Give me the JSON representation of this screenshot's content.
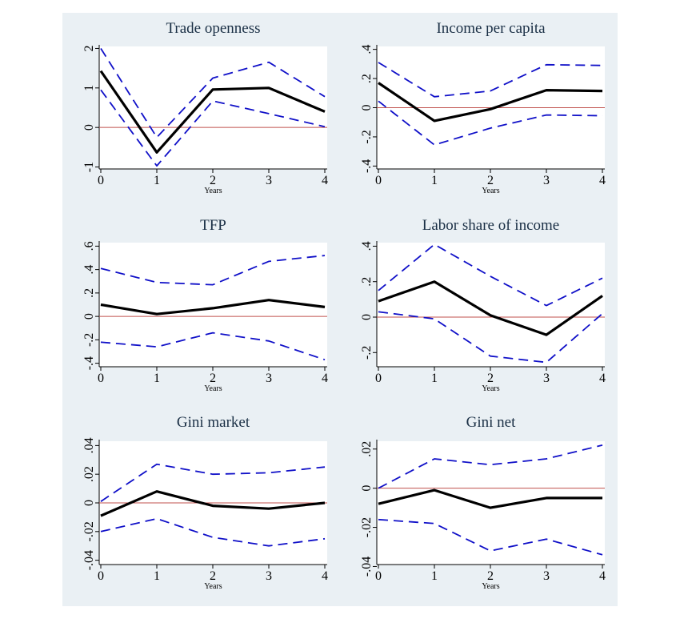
{
  "chart_data": [
    {
      "type": "line",
      "title": "Trade openness",
      "xlabel": "Years",
      "ylabel": "",
      "x": [
        0,
        1,
        2,
        3,
        4
      ],
      "xticks": [
        "0",
        "1",
        "2",
        "3",
        "4"
      ],
      "ylim": [
        -1.05,
        2.05
      ],
      "yticks": [
        {
          "v": -1,
          "t": "-1"
        },
        {
          "v": 0,
          "t": "0"
        },
        {
          "v": 1,
          "t": "1"
        },
        {
          "v": 2,
          "t": "2"
        }
      ],
      "series": [
        {
          "role": "estimate",
          "values": [
            1.43,
            -0.63,
            0.96,
            1.0,
            0.4
          ]
        },
        {
          "role": "upper",
          "values": [
            2.0,
            -0.25,
            1.25,
            1.65,
            0.78
          ]
        },
        {
          "role": "lower",
          "values": [
            0.95,
            -0.97,
            0.67,
            0.35,
            0.02
          ]
        }
      ],
      "zero_line": 0
    },
    {
      "type": "line",
      "title": "Income per capita",
      "xlabel": "Years",
      "ylabel": "",
      "x": [
        0,
        1,
        2,
        3,
        4
      ],
      "xticks": [
        "0",
        "1",
        "2",
        "3",
        "4"
      ],
      "ylim": [
        -0.42,
        0.42
      ],
      "yticks": [
        {
          "v": -0.4,
          "t": "-.4"
        },
        {
          "v": -0.2,
          "t": "-.2"
        },
        {
          "v": 0,
          "t": "0"
        },
        {
          "v": 0.2,
          "t": ".2"
        },
        {
          "v": 0.4,
          "t": ".4"
        }
      ],
      "series": [
        {
          "role": "estimate",
          "values": [
            0.17,
            -0.09,
            -0.01,
            0.12,
            0.115
          ]
        },
        {
          "role": "upper",
          "values": [
            0.31,
            0.075,
            0.115,
            0.295,
            0.29
          ]
        },
        {
          "role": "lower",
          "values": [
            0.045,
            -0.255,
            -0.14,
            -0.05,
            -0.055
          ]
        }
      ],
      "zero_line": 0
    },
    {
      "type": "line",
      "title": "TFP",
      "xlabel": "Years",
      "ylabel": "",
      "x": [
        0,
        1,
        2,
        3,
        4
      ],
      "xticks": [
        "0",
        "1",
        "2",
        "3",
        "4"
      ],
      "ylim": [
        -0.43,
        0.63
      ],
      "yticks": [
        {
          "v": -0.4,
          "t": "-.4"
        },
        {
          "v": -0.2,
          "t": "-.2"
        },
        {
          "v": 0,
          "t": "0"
        },
        {
          "v": 0.2,
          "t": ".2"
        },
        {
          "v": 0.4,
          "t": ".4"
        },
        {
          "v": 0.6,
          "t": ".6"
        }
      ],
      "series": [
        {
          "role": "estimate",
          "values": [
            0.1,
            0.02,
            0.07,
            0.14,
            0.08
          ]
        },
        {
          "role": "upper",
          "values": [
            0.41,
            0.29,
            0.27,
            0.47,
            0.52
          ]
        },
        {
          "role": "lower",
          "values": [
            -0.22,
            -0.26,
            -0.14,
            -0.21,
            -0.37
          ]
        }
      ],
      "zero_line": 0
    },
    {
      "type": "line",
      "title": "Labor share of income",
      "xlabel": "Years",
      "ylabel": "",
      "x": [
        0,
        1,
        2,
        3,
        4
      ],
      "xticks": [
        "0",
        "1",
        "2",
        "3",
        "4"
      ],
      "ylim": [
        -0.28,
        0.42
      ],
      "yticks": [
        {
          "v": -0.2,
          "t": "-.2"
        },
        {
          "v": 0,
          "t": "0"
        },
        {
          "v": 0.2,
          "t": ".2"
        },
        {
          "v": 0.4,
          "t": ".4"
        }
      ],
      "series": [
        {
          "role": "estimate",
          "values": [
            0.09,
            0.2,
            0.01,
            -0.1,
            0.12
          ]
        },
        {
          "role": "upper",
          "values": [
            0.15,
            0.41,
            0.23,
            0.065,
            0.22
          ]
        },
        {
          "role": "lower",
          "values": [
            0.03,
            -0.01,
            -0.22,
            -0.255,
            0.02
          ]
        }
      ],
      "zero_line": 0
    },
    {
      "type": "line",
      "title": "Gini market",
      "xlabel": "Years",
      "ylabel": "",
      "x": [
        0,
        1,
        2,
        3,
        4
      ],
      "xticks": [
        "0",
        "1",
        "2",
        "3",
        "4"
      ],
      "ylim": [
        -0.043,
        0.043
      ],
      "yticks": [
        {
          "v": -0.04,
          "t": "-.04"
        },
        {
          "v": -0.02,
          "t": "-.02"
        },
        {
          "v": 0,
          "t": "0"
        },
        {
          "v": 0.02,
          "t": ".02"
        },
        {
          "v": 0.04,
          "t": ".04"
        }
      ],
      "series": [
        {
          "role": "estimate",
          "values": [
            -0.009,
            0.008,
            -0.002,
            -0.004,
            0.0
          ]
        },
        {
          "role": "upper",
          "values": [
            0.001,
            0.027,
            0.02,
            0.021,
            0.025
          ]
        },
        {
          "role": "lower",
          "values": [
            -0.02,
            -0.011,
            -0.024,
            -0.03,
            -0.025
          ]
        }
      ],
      "zero_line": 0
    },
    {
      "type": "line",
      "title": "Gini net",
      "xlabel": "Years",
      "ylabel": "",
      "x": [
        0,
        1,
        2,
        3,
        4
      ],
      "xticks": [
        "0",
        "1",
        "2",
        "3",
        "4"
      ],
      "ylim": [
        -0.039,
        0.024
      ],
      "yticks": [
        {
          "v": -0.04,
          "t": "-.04"
        },
        {
          "v": -0.02,
          "t": "-.02"
        },
        {
          "v": 0,
          "t": "0"
        },
        {
          "v": 0.02,
          "t": ".02"
        }
      ],
      "series": [
        {
          "role": "estimate",
          "values": [
            -0.008,
            -0.001,
            -0.01,
            -0.005,
            -0.005
          ]
        },
        {
          "role": "upper",
          "values": [
            0.0,
            0.015,
            0.012,
            0.015,
            0.022
          ]
        },
        {
          "role": "lower",
          "values": [
            -0.016,
            -0.018,
            -0.032,
            -0.026,
            -0.034
          ]
        }
      ],
      "zero_line": 0
    }
  ],
  "colors": {
    "estimate": "#000000",
    "band": "#1010c8",
    "zero_line": "#c0504d",
    "plot_bg": "#ffffff",
    "figure_bg": "#eaf0f4",
    "title": "#1a2f45"
  },
  "style": {
    "estimate_line": "solid",
    "band_line": "dashed",
    "grid": false,
    "legend": "none"
  }
}
